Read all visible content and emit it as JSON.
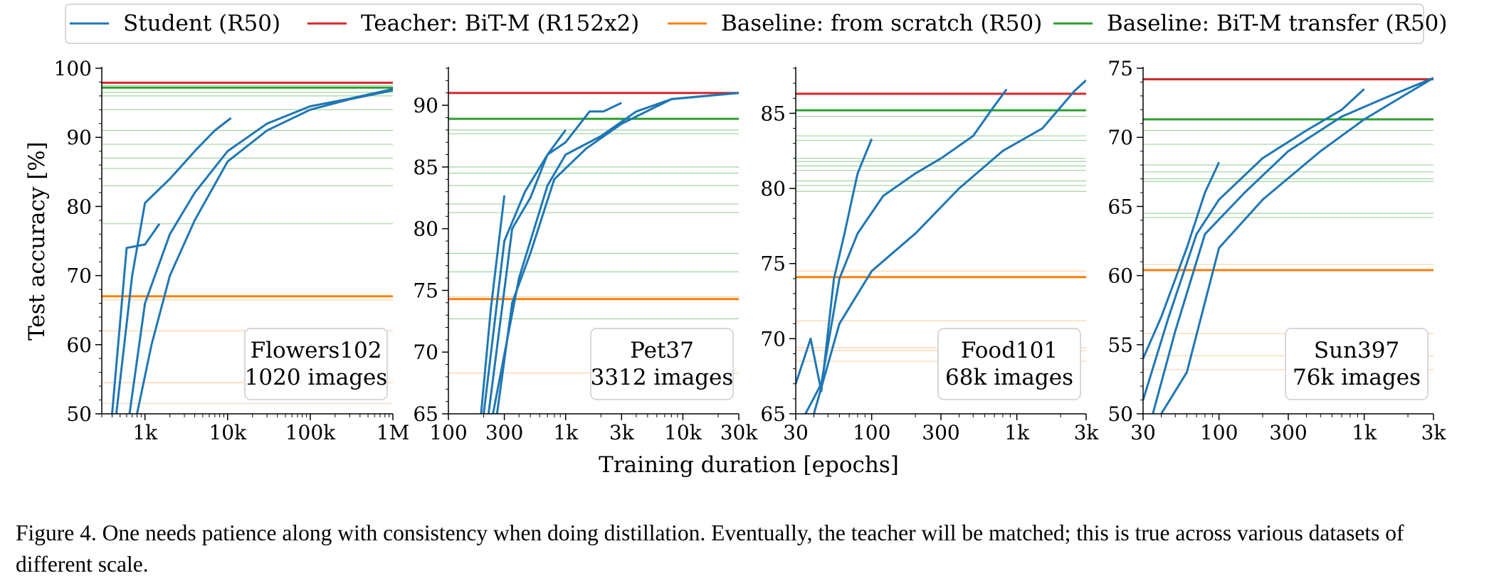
{
  "figure": {
    "xlabel": "Training duration [epochs]",
    "caption": "Figure 4. One needs patience along with consistency when doing distillation. Eventually, the teacher will be matched; this is true across various datasets of different scale."
  },
  "legend": [
    {
      "name": "Student (R50)",
      "color": "#1f77b4"
    },
    {
      "name": "Teacher: BiT-M (R152x2)",
      "color": "#d62728"
    },
    {
      "name": "Baseline: from scratch (R50)",
      "color": "#ff7f0e"
    },
    {
      "name": "Baseline: BiT-M transfer (R50)",
      "color": "#2ca02c"
    }
  ],
  "chart_data": [
    {
      "type": "line",
      "title": "Flowers102",
      "subtitle": "1020 images",
      "ylabel": "Test accuracy [%]",
      "xlabel": "",
      "xscale": "log",
      "xlim": [
        300,
        1000000
      ],
      "ylim": [
        50,
        100
      ],
      "xticks": [
        {
          "value": 1000,
          "label": "1k"
        },
        {
          "value": 10000,
          "label": "10k"
        },
        {
          "value": 100000,
          "label": "100k"
        },
        {
          "value": 1000000,
          "label": "1M"
        }
      ],
      "yticks": [
        50,
        60,
        70,
        80,
        90,
        100
      ],
      "teacher": 97.9,
      "scratch": 67.0,
      "transfer": 97.2,
      "transfer_faint": [
        97.5,
        96.5,
        96.0,
        94.0,
        91.0,
        89.0,
        87.0,
        85.5,
        83.0,
        77.5
      ],
      "scratch_faint": [
        66.5,
        62.0,
        54.5,
        51.5
      ],
      "series": [
        {
          "x": [
            400,
            600,
            1000,
            1500
          ],
          "y": [
            50,
            74,
            74.5,
            77.5
          ]
        },
        {
          "x": [
            450,
            700,
            1000,
            2000,
            4000,
            7000,
            11000
          ],
          "y": [
            50,
            70,
            80.5,
            84,
            88,
            91,
            92.8
          ]
        },
        {
          "x": [
            650,
            1000,
            2000,
            4000,
            10000,
            30000,
            100000,
            300000,
            1000000
          ],
          "y": [
            50,
            66,
            76,
            82,
            88,
            92,
            94.5,
            95.6,
            97
          ]
        },
        {
          "x": [
            800,
            1200,
            2000,
            4000,
            10000,
            30000,
            100000,
            300000,
            1000000
          ],
          "y": [
            50,
            60,
            70,
            78,
            86.5,
            91,
            94,
            95.5,
            96.8
          ]
        }
      ]
    },
    {
      "type": "line",
      "title": "Pet37",
      "subtitle": "3312 images",
      "ylabel": "",
      "xlabel": "",
      "xscale": "log",
      "xlim": [
        100,
        30000
      ],
      "ylim": [
        65,
        93
      ],
      "xticks": [
        {
          "value": 100,
          "label": "100"
        },
        {
          "value": 300,
          "label": "300"
        },
        {
          "value": 1000,
          "label": "1k"
        },
        {
          "value": 3000,
          "label": "3k"
        },
        {
          "value": 10000,
          "label": "10k"
        },
        {
          "value": 30000,
          "label": "30k"
        }
      ],
      "yticks": [
        65,
        70,
        75,
        80,
        85,
        90
      ],
      "teacher": 91.0,
      "scratch": 74.3,
      "transfer": 88.9,
      "transfer_faint": [
        88.0,
        87.7,
        85.0,
        84.5,
        83.5,
        82.0,
        81.3,
        78.0,
        76.5,
        72.7
      ],
      "scratch_faint": [
        74.5,
        68.3
      ],
      "series": [
        {
          "x": [
            190,
            230,
            300
          ],
          "y": [
            65,
            73.5,
            82.7
          ]
        },
        {
          "x": [
            200,
            300,
            450,
            700,
            1000,
            1600,
            2100,
            3000
          ],
          "y": [
            65,
            79,
            83,
            86,
            87,
            89.5,
            89.5,
            90.2
          ]
        },
        {
          "x": [
            220,
            350,
            500,
            700,
            1000
          ],
          "y": [
            65,
            80,
            82.5,
            86,
            88
          ]
        },
        {
          "x": [
            240,
            400,
            700,
            1000,
            2000,
            4000,
            8000,
            30000
          ],
          "y": [
            65,
            76,
            83.5,
            86,
            87.5,
            89.5,
            90.5,
            91
          ]
        },
        {
          "x": [
            260,
            350,
            500,
            800,
            1500,
            3000,
            8000,
            30000
          ],
          "y": [
            65,
            74,
            78,
            84,
            86.5,
            88.5,
            90.5,
            91
          ]
        }
      ]
    },
    {
      "type": "line",
      "title": "Food101",
      "subtitle": "68k images",
      "ylabel": "",
      "xlabel": "",
      "xscale": "log",
      "xlim": [
        30,
        3000
      ],
      "ylim": [
        65,
        88
      ],
      "xticks": [
        {
          "value": 30,
          "label": "30"
        },
        {
          "value": 100,
          "label": "100"
        },
        {
          "value": 300,
          "label": "300"
        },
        {
          "value": 1000,
          "label": "1k"
        },
        {
          "value": 3000,
          "label": "3k"
        }
      ],
      "yticks": [
        65,
        70,
        75,
        80,
        85
      ],
      "teacher": 86.3,
      "scratch": 74.1,
      "transfer": 85.2,
      "transfer_faint": [
        84.8,
        83.5,
        83.2,
        82.0,
        81.8,
        81.5,
        81.2,
        80.5,
        80.2,
        79.8
      ],
      "scratch_faint": [
        74.5,
        71.2,
        69.4,
        69.2,
        68.5
      ],
      "series": [
        {
          "x": [
            30,
            38,
            45,
            55,
            65,
            80,
            100
          ],
          "y": [
            67,
            70,
            66.5,
            74,
            77,
            81,
            83.3
          ]
        },
        {
          "x": [
            35,
            45,
            60,
            80,
            120,
            200,
            300,
            500,
            700,
            850
          ],
          "y": [
            65,
            67,
            74,
            77,
            79.5,
            81,
            82,
            83.5,
            85.5,
            86.6
          ]
        },
        {
          "x": [
            40,
            60,
            100,
            200,
            400,
            800,
            1500,
            2500,
            3000
          ],
          "y": [
            65,
            71,
            74.5,
            77,
            80,
            82.5,
            84,
            86.5,
            87.2
          ]
        }
      ]
    },
    {
      "type": "line",
      "title": "Sun397",
      "subtitle": "76k images",
      "ylabel": "",
      "xlabel": "",
      "xscale": "log",
      "xlim": [
        30,
        3000
      ],
      "ylim": [
        50,
        75
      ],
      "xticks": [
        {
          "value": 30,
          "label": "30"
        },
        {
          "value": 100,
          "label": "100"
        },
        {
          "value": 300,
          "label": "300"
        },
        {
          "value": 1000,
          "label": "1k"
        },
        {
          "value": 3000,
          "label": "3k"
        }
      ],
      "yticks": [
        50,
        55,
        60,
        65,
        70,
        75
      ],
      "teacher": 74.2,
      "scratch": 60.4,
      "transfer": 71.3,
      "transfer_faint": [
        70.5,
        69.5,
        68.0,
        67.5,
        67.0,
        66.8,
        64.5,
        64.2
      ],
      "scratch_faint": [
        60.8,
        55.8,
        54.2,
        53.2
      ],
      "series": [
        {
          "x": [
            30,
            40,
            60,
            80,
            100
          ],
          "y": [
            54,
            57,
            62,
            66,
            68.2
          ]
        },
        {
          "x": [
            30,
            45,
            70,
            100,
            200,
            400,
            700,
            1000
          ],
          "y": [
            51,
            57,
            63,
            65.5,
            68.5,
            70.5,
            72,
            73.5
          ]
        },
        {
          "x": [
            35,
            50,
            80,
            150,
            300,
            700,
            1500,
            3000
          ],
          "y": [
            50,
            56,
            63,
            66,
            69,
            71.5,
            73,
            74.3
          ]
        },
        {
          "x": [
            40,
            60,
            100,
            200,
            500,
            1000,
            2000,
            3000
          ],
          "y": [
            50,
            53,
            62,
            65.5,
            69,
            71.3,
            73.2,
            74.3
          ]
        }
      ]
    }
  ]
}
